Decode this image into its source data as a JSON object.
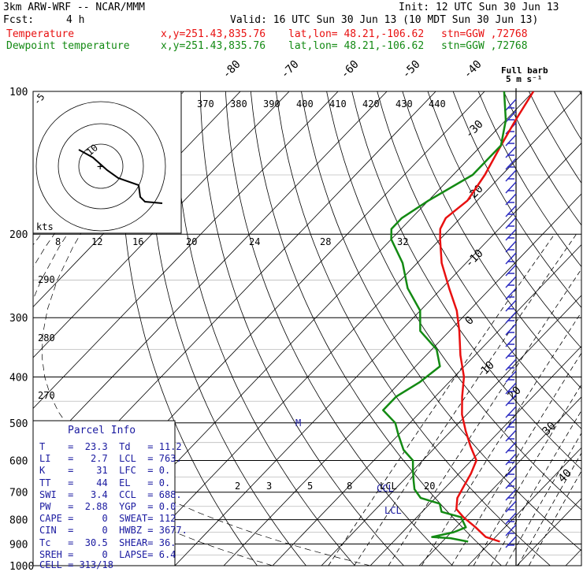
{
  "header": {
    "model": "3km ARW-WRF -- NCAR/MMM",
    "init": "Init: 12 UTC Sun 30 Jun 13",
    "fcst_label": "Fcst:",
    "fcst_value": "4 h",
    "valid": "Valid: 16 UTC Sun 30 Jun 13 (10 MDT Sun 30 Jun 13)",
    "temp_line": {
      "label": "Temperature",
      "xy": "x,y=251.43,835.76",
      "latlon": "lat,lon= 48.21,-106.62",
      "stn": "stn=GGW ,72768"
    },
    "dew_line": {
      "label": "Dewpoint temperature",
      "xy": "x,y=251.43,835.76",
      "latlon": "lat,lon= 48.21,-106.62",
      "stn": "stn=GGW ,72768"
    }
  },
  "colors": {
    "temperature": "#e81010",
    "dewpoint": "#138a13",
    "isotherm": "#000000",
    "info": "#1a1aa0",
    "barb": "#2a2ac0"
  },
  "pressure_labels": [
    "100",
    "200",
    "300",
    "400",
    "500",
    "600",
    "700",
    "800",
    "900",
    "1000"
  ],
  "theta_labels": [
    "370",
    "380",
    "390",
    "400",
    "410",
    "420",
    "430",
    "440"
  ],
  "mixing_labels_top": [
    "8",
    "12",
    "16",
    "20",
    "24",
    "28",
    "32"
  ],
  "mixing_labels_bottom": [
    "2",
    "3",
    "5",
    "8",
    "LCL",
    "20"
  ],
  "isotherm_labels": [
    "-80",
    "-70",
    "-60",
    "-50",
    "-40",
    "-30",
    "-20",
    "-10",
    "0",
    "10",
    "20",
    "30",
    "40"
  ],
  "dry_adiabat_labels": [
    "290",
    "280",
    "270"
  ],
  "hodograph": {
    "units": "kts",
    "rings": [
      "-5",
      "10"
    ]
  },
  "barb_legend": {
    "title": "Full barb",
    "value": "5 m s⁻¹"
  },
  "chart_data": {
    "type": "line",
    "y_axis": "pressure (hPa, log scale)",
    "ylim": [
      1000,
      100
    ],
    "series": [
      {
        "name": "Temperature",
        "pressure": [
          890,
          870,
          830,
          790,
          760,
          720,
          680,
          640,
          600,
          560,
          520,
          480,
          440,
          400,
          360,
          320,
          290,
          260,
          230,
          205,
          195,
          185,
          170,
          150,
          130,
          115,
          100
        ],
        "values": [
          21.8,
          18,
          14,
          9.5,
          6.5,
          4.5,
          3.5,
          2.5,
          1,
          -3,
          -7,
          -11,
          -14.5,
          -18,
          -23,
          -28,
          -32.5,
          -38.5,
          -45,
          -50,
          -52,
          -53,
          -52,
          -53.5,
          -56,
          -58,
          -60
        ]
      },
      {
        "name": "Dewpoint temperature",
        "pressure": [
          890,
          875,
          870,
          850,
          830,
          790,
          770,
          740,
          720,
          690,
          660,
          630,
          600,
          570,
          530,
          500,
          470,
          440,
          410,
          380,
          350,
          320,
          290,
          260,
          230,
          205,
          195,
          185,
          170,
          150,
          130,
          115,
          100
        ],
        "values": [
          15.3,
          11,
          7,
          10.5,
          12,
          9,
          4,
          2,
          -3,
          -6,
          -8,
          -10,
          -12,
          -16,
          -20,
          -23,
          -28,
          -28,
          -26,
          -25,
          -29,
          -36,
          -40,
          -47,
          -53,
          -60,
          -62,
          -62,
          -60,
          -56,
          -56,
          -60,
          -66
        ]
      }
    ],
    "text": {
      "title": "Parcel Info",
      "parcel": [
        {
          "l1": "T  ",
          "v1": "23.3",
          "l2": "Td ",
          "v2": "11.2"
        },
        {
          "l1": "LI ",
          "v1": "2.7",
          "l2": "LCL",
          "v2": "763."
        },
        {
          "l1": "K  ",
          "v1": "31",
          "l2": "LFC",
          "v2": "0."
        },
        {
          "l1": "TT ",
          "v1": "44",
          "l2": "EL ",
          "v2": "0."
        },
        {
          "l1": "SWI",
          "v1": "3.4",
          "l2": "CCL",
          "v2": "688."
        },
        {
          "l1": "PW ",
          "v1": "2.88",
          "l2": "YGP",
          "v2": "0.0"
        },
        {
          "l1": "CAPE",
          "v1": "0",
          "l2": "SWEAT",
          "v2": "112"
        },
        {
          "l1": "CIN",
          "v1": "0",
          "l2": "HWBZ",
          "v2": "3677."
        },
        {
          "l1": "Tc ",
          "v1": "30.5",
          "l2": "SHEAR",
          "v2": "36."
        },
        {
          "l1": "SREH",
          "v1": "0",
          "l2": "LAPSE",
          "v2": "6.4"
        }
      ],
      "cell": "CELL = 313/18",
      "lcl_label": "LCL",
      "ccl_label": "CCL",
      "m_label": "M"
    }
  }
}
